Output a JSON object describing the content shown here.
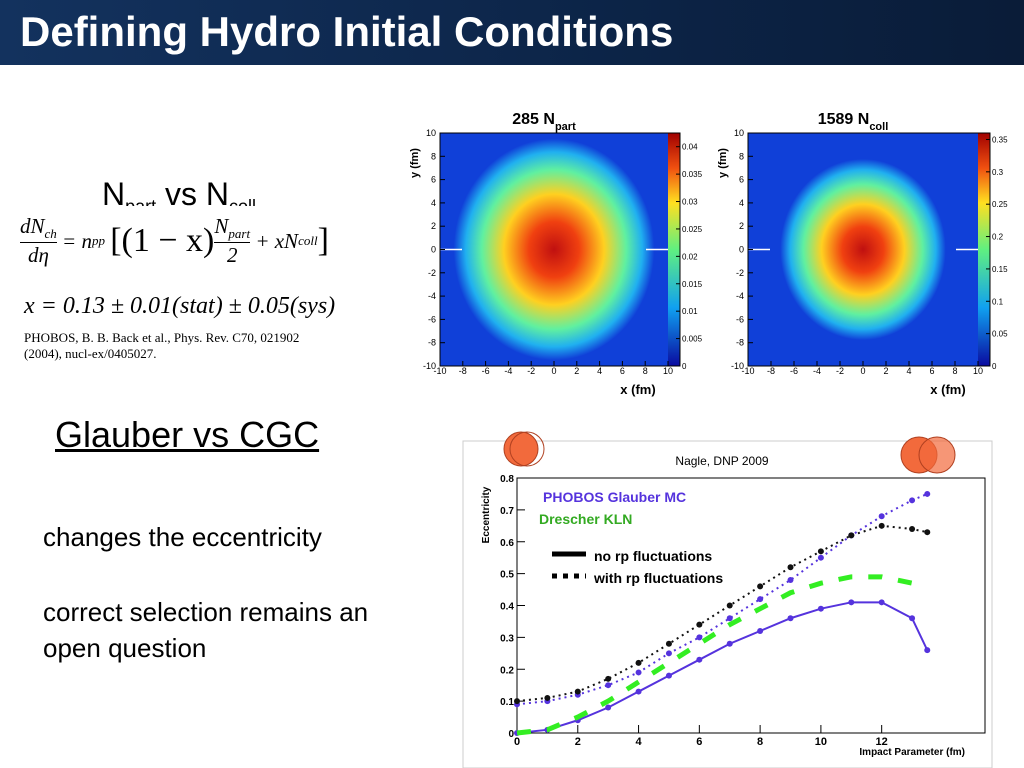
{
  "header": {
    "title": "Defining Hydro Initial Conditions"
  },
  "left": {
    "heading": {
      "n1": "N",
      "sub1": "part",
      "mid": " vs N",
      "sub2": "coll"
    },
    "equation": {
      "lhs_num": "dN",
      "lhs_num_sub": "ch",
      "lhs_den": "dη",
      "eq": "= n",
      "eq_sub": "pp",
      "open": "[(1 − x)",
      "frac_num": "N",
      "frac_num_sub": "part",
      "frac_den": "2",
      "plus": "+ xN",
      "plus_sub": "coll",
      "close": "]"
    },
    "fit": "x = 0.13 ± 0.01(stat) ± 0.05(sys)",
    "ref1": "PHOBOS, B. B. Back et al.,  Phys. Rev. C70, 021902",
    "ref2": "(2004), nucl-ex/0405027.",
    "section": "Glauber vs CGC",
    "bullet1": "changes the eccentricity",
    "bullet2a": "correct selection remains an",
    "bullet2b": "open question"
  },
  "heatmaps": [
    {
      "title": "285 N",
      "title_sub": "part",
      "xlabel": "x (fm)",
      "ylabel": "y (fm)",
      "xticks": [
        -10,
        -8,
        -6,
        -4,
        -2,
        0,
        2,
        4,
        6,
        8,
        10
      ],
      "yticks": [
        -10,
        -8,
        -6,
        -4,
        -2,
        0,
        2,
        4,
        6,
        8,
        10
      ],
      "zticks": [
        0,
        0.005,
        0.01,
        0.015,
        0.02,
        0.025,
        0.03,
        0.035,
        0.04
      ],
      "zlim": [
        0,
        0.0425
      ]
    },
    {
      "title": "1589 N",
      "title_sub": "coll",
      "xlabel": "x (fm)",
      "ylabel": "y (fm)",
      "xticks": [
        -10,
        -8,
        -6,
        -4,
        -2,
        0,
        2,
        4,
        6,
        8,
        10
      ],
      "yticks": [
        -10,
        -8,
        -6,
        -4,
        -2,
        0,
        2,
        4,
        6,
        8,
        10
      ],
      "zticks": [
        0,
        0.05,
        0.1,
        0.15,
        0.2,
        0.25,
        0.3,
        0.35
      ],
      "zlim": [
        0,
        0.36
      ]
    }
  ],
  "chart_data": {
    "type": "line",
    "annotation": "Nagle, DNP 2009",
    "xlabel": "Impact Parameter (fm)",
    "ylabel": "Eccentricity",
    "model_labels": [
      {
        "text": "PHOBOS Glauber MC",
        "color": "#5533dd"
      },
      {
        "text": "Drescher KLN",
        "color": "#33aa22"
      }
    ],
    "style_labels": [
      "no rp fluctuations",
      "with rp fluctuations"
    ],
    "x": [
      0,
      1,
      2,
      3,
      4,
      5,
      6,
      7,
      8,
      9,
      10,
      11,
      12,
      13,
      13.5
    ],
    "series": [
      {
        "color": "#5533dd",
        "dash": "solid",
        "markers": true,
        "values": [
          0,
          0.01,
          0.04,
          0.08,
          0.13,
          0.18,
          0.23,
          0.28,
          0.32,
          0.36,
          0.39,
          0.41,
          0.41,
          0.36,
          0.26
        ]
      },
      {
        "color": "#5533dd",
        "dash": "dotted",
        "markers": true,
        "values": [
          0.09,
          0.1,
          0.12,
          0.15,
          0.19,
          0.25,
          0.3,
          0.36,
          0.42,
          0.48,
          0.55,
          0.62,
          0.68,
          0.73,
          0.75
        ]
      },
      {
        "color": "#33ee22",
        "dash": "dashed",
        "markers": false,
        "values": [
          0,
          0.01,
          0.05,
          0.1,
          0.16,
          0.22,
          0.28,
          0.34,
          0.39,
          0.44,
          0.47,
          0.49,
          0.49,
          0.47,
          0.46
        ]
      },
      {
        "color": "#111111",
        "dash": "dotted",
        "markers": true,
        "values": [
          0.1,
          0.11,
          0.13,
          0.17,
          0.22,
          0.28,
          0.34,
          0.4,
          0.46,
          0.52,
          0.57,
          0.62,
          0.65,
          0.64,
          0.63
        ]
      }
    ],
    "xlim": [
      0,
      15.4
    ],
    "ylim": [
      0,
      0.8
    ],
    "xticks": [
      0,
      2,
      4,
      6,
      8,
      10,
      12
    ],
    "yticks": [
      0,
      0.1,
      0.2,
      0.3,
      0.4,
      0.5,
      0.6,
      0.7,
      0.8
    ]
  }
}
